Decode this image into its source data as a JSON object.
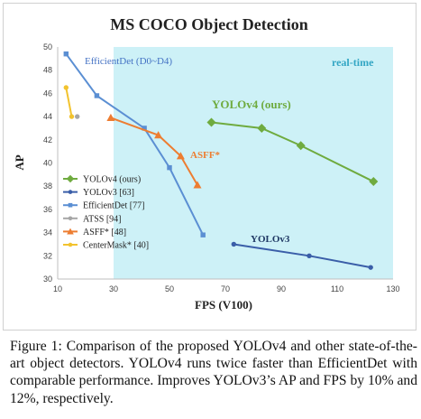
{
  "caption": "Figure 1: Comparison of the proposed YOLOv4 and other state-of-the-art object detectors. YOLOv4 runs twice faster than EfficientDet with comparable performance. Improves YOLOv3’s AP and FPS by 10% and 12%, respectively.",
  "chart_data": {
    "type": "line",
    "title": "MS COCO Object Detection",
    "xlabel": "FPS (V100)",
    "ylabel": "AP",
    "xlim": [
      10,
      130
    ],
    "ylim": [
      30,
      50
    ],
    "xticks": [
      "10",
      "30",
      "50",
      "70",
      "90",
      "110",
      "130"
    ],
    "yticks": [
      "30",
      "32",
      "34",
      "36",
      "38",
      "40",
      "42",
      "44",
      "46",
      "48",
      "50"
    ],
    "grid": false,
    "legend_position": "left-center",
    "realtime_region": {
      "x_from": 30,
      "x_to": 130,
      "label": "real-time",
      "color": "#cdf1f7"
    },
    "series": [
      {
        "name": "YOLOv4 (ours)",
        "color": "#6fab3f",
        "marker": "diamond",
        "x": [
          65,
          83,
          97,
          123
        ],
        "y": [
          43.5,
          43.0,
          41.5,
          38.4
        ]
      },
      {
        "name": "YOLOv3 [63]",
        "color": "#3a5ea8",
        "marker": "circle",
        "x": [
          73,
          100,
          122
        ],
        "y": [
          33.0,
          32.0,
          31.0
        ]
      },
      {
        "name": "EfficientDet [77]",
        "color": "#5b8fd3",
        "marker": "square",
        "x": [
          13,
          24,
          41,
          50,
          62
        ],
        "y": [
          49.4,
          45.8,
          43.0,
          39.6,
          33.8
        ]
      },
      {
        "name": "ATSS [94]",
        "color": "#a6a6a6",
        "marker": "circle",
        "x": [
          17
        ],
        "y": [
          44.0
        ]
      },
      {
        "name": "ASFF* [48]",
        "color": "#ed7d31",
        "marker": "triangle",
        "x": [
          29,
          46,
          54,
          60
        ],
        "y": [
          43.9,
          42.4,
          40.6,
          38.1
        ]
      },
      {
        "name": "CenterMask* [40]",
        "color": "#f2c32e",
        "marker": "circle",
        "x": [
          13,
          15
        ],
        "y": [
          46.5,
          44.0
        ]
      }
    ],
    "annotations": [
      {
        "text": "EfficientDet (D0~D4)",
        "color": "#4472c4"
      },
      {
        "text": "YOLOv4 (ours)",
        "color": "#6fab3f"
      },
      {
        "text": "ASFF*",
        "color": "#ed7d31"
      },
      {
        "text": "YOLOv3",
        "color": "#1f3864"
      },
      {
        "text": "real-time",
        "color": "#33a6c4"
      }
    ]
  }
}
